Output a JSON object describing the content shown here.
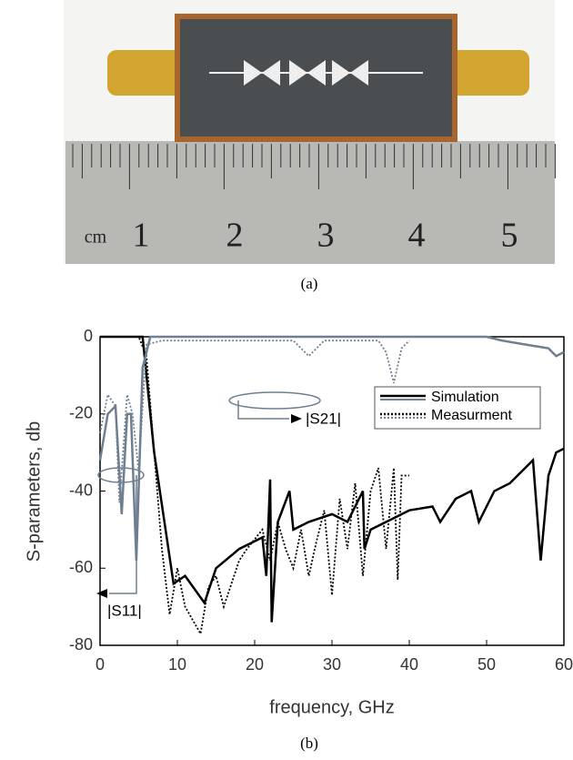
{
  "photo": {
    "ruler_labels": [
      "cm",
      "1",
      "2",
      "3",
      "4",
      "5"
    ]
  },
  "captions": [
    "(a)",
    "(b)"
  ],
  "chart_data": {
    "type": "line",
    "x_label": "frequency, GHz",
    "y_label": "S-parameters, db",
    "xlim": [
      0,
      60
    ],
    "ylim": [
      -80,
      0
    ],
    "xticks": [
      0,
      10,
      20,
      30,
      40,
      50,
      60
    ],
    "yticks": [
      -80,
      -60,
      -40,
      -20,
      0
    ],
    "annotations": [
      "|S21|",
      "|S11|"
    ],
    "series": [
      {
        "name": "Simulation",
        "color": "#000000",
        "dash": "solid",
        "x": [
          0,
          5.5,
          7,
          9.5,
          11,
          13.5,
          15,
          18,
          21,
          21.5,
          22,
          22.2,
          23,
          24.5,
          25,
          27,
          30,
          32,
          34,
          34.2,
          35,
          38,
          40,
          43,
          44,
          46,
          48,
          49,
          51,
          53,
          56,
          57,
          58,
          59,
          60
        ],
        "values": [
          0,
          0,
          -30,
          -64,
          -62,
          -69,
          -60,
          -55,
          -52,
          -62,
          -37,
          -74,
          -48,
          -40,
          -50,
          -48,
          -46,
          -48,
          -40,
          -55,
          -50,
          -47,
          -45,
          -44,
          -48,
          -42,
          -40,
          -48,
          -40,
          -38,
          -32,
          -58,
          -36,
          -30,
          -29
        ]
      },
      {
        "name": "Measurment",
        "color": "#000000",
        "dash": "dotted",
        "x": [
          0,
          5,
          6,
          7,
          8,
          9,
          10,
          11,
          13,
          14,
          15,
          16,
          18,
          19,
          21,
          22,
          23,
          24,
          25,
          26,
          27,
          28,
          29,
          30,
          31,
          32,
          33,
          34,
          35,
          36,
          37,
          38,
          38.5,
          39,
          40
        ],
        "values": [
          0,
          0,
          -5,
          -30,
          -55,
          -72,
          -60,
          -70,
          -77,
          -65,
          -62,
          -70,
          -58,
          -55,
          -50,
          -58,
          -48,
          -55,
          -60,
          -50,
          -62,
          -53,
          -45,
          -67,
          -42,
          -55,
          -38,
          -62,
          -40,
          -34,
          -55,
          -34,
          -63,
          -36,
          -36
        ]
      },
      {
        "name": "Simulation",
        "color": "#6f7f8f",
        "dash": "solid",
        "x": [
          0,
          1,
          2,
          2.8,
          3.5,
          4,
          4.7,
          5.5,
          6.5,
          50,
          52,
          55,
          58,
          59,
          60
        ],
        "values": [
          -32,
          -20,
          -18,
          -46,
          -20,
          -20,
          -58,
          -8,
          0,
          0,
          -1,
          -2,
          -3,
          -5,
          -4
        ]
      },
      {
        "name": "Measurment",
        "color": "#6f7f8f",
        "dash": "dotted",
        "x": [
          0,
          1,
          2,
          2.5,
          3.5,
          4.2,
          5,
          6,
          8,
          25,
          27,
          29,
          36,
          37,
          38,
          39,
          40
        ],
        "values": [
          -25,
          -15,
          -18,
          -43,
          -15,
          -20,
          -35,
          -2,
          -1,
          -1,
          -5,
          -1,
          -1,
          -4,
          -12,
          -3,
          -1
        ]
      }
    ]
  }
}
